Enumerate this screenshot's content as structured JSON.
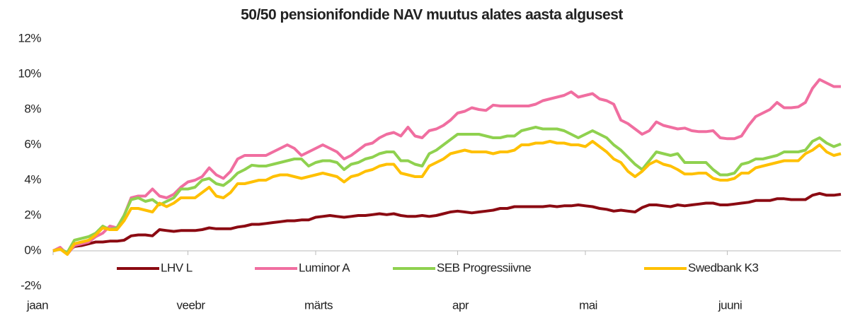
{
  "chart_data": {
    "type": "line",
    "title": "50/50 pensionifondide NAV muutus alates aasta algusest",
    "categories": [
      "jaan",
      null,
      null,
      null,
      null,
      null,
      null,
      null,
      null,
      null,
      null,
      null,
      null,
      null,
      null,
      null,
      null,
      null,
      null,
      "veebr",
      null,
      null,
      null,
      null,
      null,
      null,
      null,
      null,
      null,
      null,
      null,
      null,
      null,
      null,
      null,
      null,
      null,
      "märts",
      null,
      null,
      null,
      null,
      null,
      null,
      null,
      null,
      null,
      null,
      null,
      null,
      null,
      null,
      null,
      null,
      null,
      null,
      null,
      "apr",
      null,
      null,
      null,
      null,
      null,
      null,
      null,
      null,
      null,
      null,
      null,
      null,
      null,
      null,
      null,
      null,
      null,
      "mai",
      null,
      null,
      null,
      null,
      null,
      null,
      null,
      null,
      null,
      null,
      null,
      null,
      null,
      null,
      null,
      null,
      null,
      null,
      null,
      "juuni",
      null,
      null,
      null,
      null,
      null,
      null,
      null,
      null,
      null,
      null,
      null,
      null,
      null,
      null,
      null,
      null
    ],
    "series": [
      {
        "name": "LHV L",
        "color": "#8b0a12",
        "values": [
          0,
          0.1,
          -0.1,
          0.25,
          0.3,
          0.4,
          0.5,
          0.5,
          0.55,
          0.55,
          0.6,
          0.85,
          0.9,
          0.9,
          0.85,
          1.2,
          1.15,
          1.1,
          1.15,
          1.15,
          1.15,
          1.2,
          1.3,
          1.25,
          1.25,
          1.25,
          1.35,
          1.4,
          1.5,
          1.5,
          1.55,
          1.6,
          1.65,
          1.7,
          1.7,
          1.75,
          1.75,
          1.9,
          1.95,
          2.0,
          1.95,
          1.9,
          1.95,
          2.0,
          2.0,
          2.05,
          2.1,
          2.05,
          2.1,
          2.0,
          1.95,
          1.95,
          2.0,
          1.95,
          2.0,
          2.1,
          2.2,
          2.25,
          2.2,
          2.15,
          2.2,
          2.25,
          2.3,
          2.4,
          2.4,
          2.5,
          2.5,
          2.5,
          2.5,
          2.5,
          2.55,
          2.5,
          2.55,
          2.55,
          2.6,
          2.55,
          2.5,
          2.4,
          2.35,
          2.25,
          2.3,
          2.25,
          2.2,
          2.45,
          2.6,
          2.6,
          2.55,
          2.5,
          2.6,
          2.55,
          2.6,
          2.65,
          2.7,
          2.7,
          2.6,
          2.6,
          2.65,
          2.7,
          2.75,
          2.85,
          2.85,
          2.85,
          2.95,
          2.95,
          2.9,
          2.9,
          2.9,
          3.15,
          3.25,
          3.15,
          3.15,
          3.2
        ]
      },
      {
        "name": "Luminor A",
        "color": "#f06ea0",
        "values": [
          0,
          0.2,
          -0.2,
          0.3,
          0.4,
          0.5,
          0.8,
          1.0,
          1.4,
          1.3,
          2.0,
          3.0,
          3.1,
          3.1,
          3.5,
          3.1,
          3.0,
          3.2,
          3.6,
          3.9,
          4.0,
          4.2,
          4.7,
          4.3,
          4.1,
          4.5,
          5.2,
          5.4,
          5.4,
          5.4,
          5.4,
          5.6,
          5.8,
          6.0,
          5.8,
          5.4,
          5.6,
          5.8,
          6.0,
          5.8,
          5.6,
          5.2,
          5.4,
          5.7,
          6.0,
          6.1,
          6.4,
          6.6,
          6.7,
          6.5,
          7.0,
          6.5,
          6.4,
          6.8,
          6.9,
          7.1,
          7.4,
          7.8,
          7.9,
          8.1,
          8.0,
          7.95,
          8.25,
          8.2,
          8.2,
          8.2,
          8.2,
          8.2,
          8.3,
          8.5,
          8.6,
          8.7,
          8.8,
          9.0,
          8.7,
          8.8,
          8.9,
          8.6,
          8.5,
          8.3,
          7.4,
          7.2,
          6.9,
          6.6,
          6.8,
          7.3,
          7.1,
          7.0,
          6.9,
          6.95,
          6.8,
          6.75,
          6.75,
          6.8,
          6.4,
          6.35,
          6.35,
          6.5,
          7.1,
          7.6,
          7.8,
          8.0,
          8.4,
          8.1,
          8.1,
          8.15,
          8.4,
          9.2,
          9.7,
          9.5,
          9.3,
          9.3
        ]
      },
      {
        "name": "SEB Progressiivne",
        "color": "#8fd14f",
        "values": [
          0,
          0.1,
          -0.1,
          0.6,
          0.7,
          0.8,
          1.0,
          1.4,
          1.2,
          1.3,
          2.0,
          2.9,
          3.0,
          2.8,
          2.9,
          2.6,
          2.8,
          3.0,
          3.5,
          3.5,
          3.6,
          4.0,
          4.1,
          3.8,
          3.7,
          4.0,
          4.4,
          4.6,
          4.85,
          4.8,
          4.8,
          4.9,
          5.0,
          5.1,
          5.2,
          5.2,
          4.8,
          5.0,
          5.1,
          5.1,
          5.0,
          4.6,
          4.9,
          5.0,
          5.2,
          5.3,
          5.5,
          5.6,
          5.6,
          5.1,
          5.1,
          4.9,
          4.8,
          5.5,
          5.7,
          6.0,
          6.3,
          6.6,
          6.6,
          6.6,
          6.6,
          6.5,
          6.4,
          6.4,
          6.5,
          6.5,
          6.8,
          6.9,
          7.0,
          6.9,
          6.9,
          6.9,
          6.8,
          6.6,
          6.4,
          6.6,
          6.8,
          6.6,
          6.4,
          6.0,
          5.7,
          5.3,
          4.9,
          4.6,
          5.1,
          5.6,
          5.5,
          5.4,
          5.5,
          5.0,
          5.0,
          5.0,
          5.0,
          4.6,
          4.3,
          4.3,
          4.4,
          4.9,
          5.0,
          5.2,
          5.2,
          5.3,
          5.4,
          5.6,
          5.6,
          5.6,
          5.7,
          6.2,
          6.4,
          6.1,
          5.9,
          6.05
        ]
      },
      {
        "name": "Swedbank K3",
        "color": "#ffc000",
        "values": [
          0,
          0.1,
          -0.2,
          0.4,
          0.5,
          0.6,
          0.9,
          1.3,
          1.2,
          1.2,
          1.7,
          2.4,
          2.4,
          2.3,
          2.2,
          2.7,
          2.5,
          2.7,
          3.0,
          3.0,
          3.0,
          3.3,
          3.6,
          3.1,
          3.0,
          3.3,
          3.8,
          3.8,
          3.9,
          4.0,
          4.0,
          4.2,
          4.3,
          4.3,
          4.2,
          4.1,
          4.2,
          4.3,
          4.4,
          4.3,
          4.2,
          3.9,
          4.2,
          4.3,
          4.5,
          4.6,
          4.8,
          4.9,
          4.9,
          4.4,
          4.3,
          4.2,
          4.2,
          4.8,
          5.0,
          5.2,
          5.5,
          5.6,
          5.7,
          5.6,
          5.6,
          5.6,
          5.5,
          5.6,
          5.6,
          5.7,
          6.0,
          6.0,
          6.1,
          6.1,
          6.2,
          6.1,
          6.1,
          6.0,
          6.0,
          5.9,
          6.2,
          5.9,
          5.6,
          5.2,
          5.0,
          4.5,
          4.2,
          4.5,
          4.9,
          5.1,
          4.9,
          4.8,
          4.6,
          4.35,
          4.35,
          4.4,
          4.4,
          4.1,
          4.0,
          4.0,
          4.1,
          4.4,
          4.4,
          4.7,
          4.8,
          4.9,
          5.0,
          5.1,
          5.1,
          5.1,
          5.5,
          5.7,
          6.0,
          5.6,
          5.4,
          5.5
        ]
      }
    ],
    "ylim": [
      -2,
      12
    ],
    "yticks": [
      {
        "value": -2,
        "label": "-2%"
      },
      {
        "value": 0,
        "label": "0%"
      },
      {
        "value": 2,
        "label": "2%"
      },
      {
        "value": 4,
        "label": "4%"
      },
      {
        "value": 6,
        "label": "6%"
      },
      {
        "value": 8,
        "label": "8%"
      },
      {
        "value": 10,
        "label": "10%"
      },
      {
        "value": 12,
        "label": "12%"
      }
    ],
    "grid": false,
    "legend": "bottom"
  }
}
